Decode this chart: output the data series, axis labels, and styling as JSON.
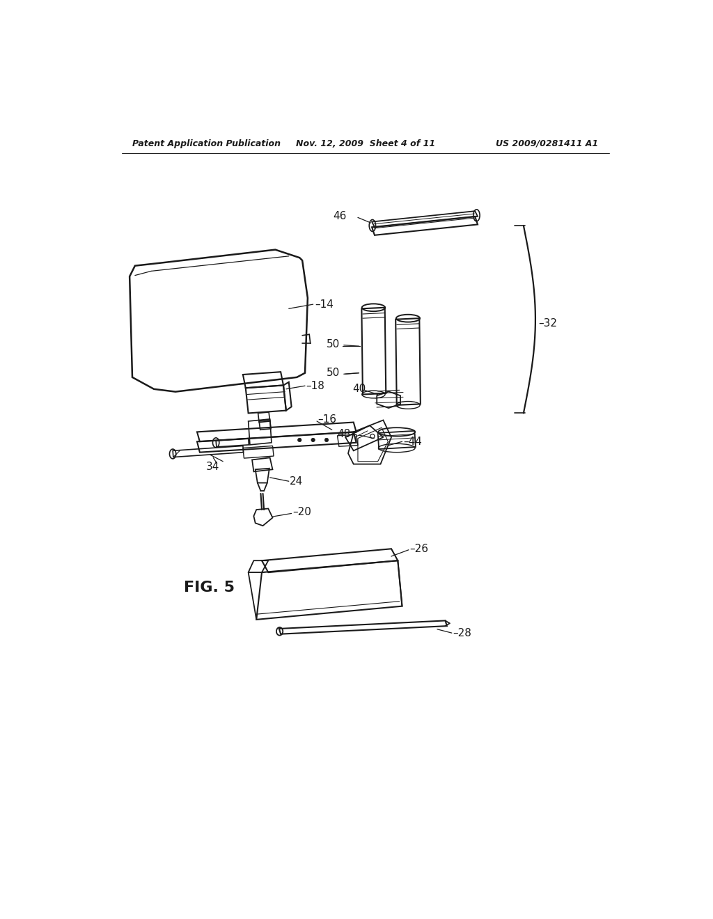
{
  "header_left": "Patent Application Publication",
  "header_mid": "Nov. 12, 2009  Sheet 4 of 11",
  "header_right": "US 2009/0281411 A1",
  "figure_label": "FIG. 5",
  "bg_color": "#ffffff",
  "line_color": "#1a1a1a",
  "lw_main": 1.5,
  "lw_thin": 0.8,
  "fontsize_label": 10,
  "fontsize_fig": 16,
  "fontsize_header": 9
}
